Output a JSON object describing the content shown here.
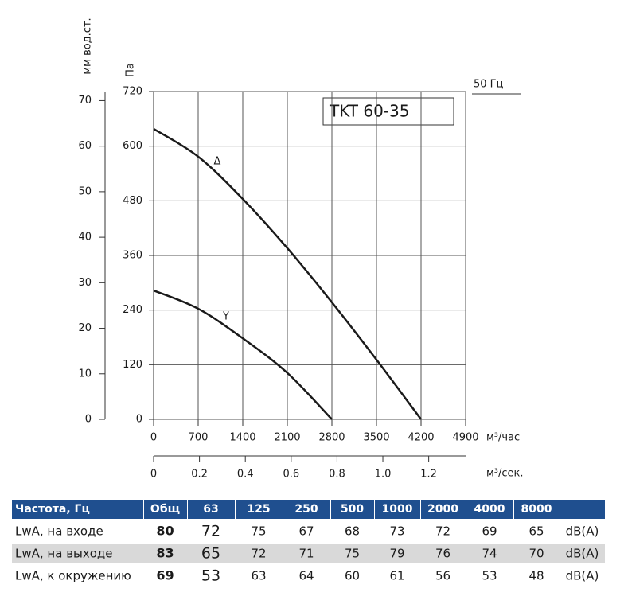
{
  "chart_data": {
    "type": "line",
    "title": "TKT 60-35",
    "annotation": "50 Гц",
    "xlabel": "м³/час",
    "x2label": "м³/сек.",
    "ylabel": "Па",
    "y2label": "мм вод.ст.",
    "x": [
      0,
      700,
      1400,
      2100,
      2800,
      3500,
      4200
    ],
    "series": [
      {
        "name": "Δ",
        "color": "#1a1a1a",
        "values": [
          638,
          577,
          484,
          376,
          257,
          131,
          0
        ]
      },
      {
        "name": "Y",
        "color": "#1a1a1a",
        "values": [
          283,
          243,
          178,
          102,
          0,
          null,
          null
        ]
      }
    ],
    "xlim": [
      0,
      4900
    ],
    "xticks": [
      0,
      700,
      1400,
      2100,
      2800,
      3500,
      4200,
      4900
    ],
    "x2lim": [
      0,
      1.361
    ],
    "x2ticks": [
      0,
      0.2,
      0.4,
      0.6,
      0.8,
      {
        "value": 1.0,
        "label": "1.0"
      },
      1.2
    ],
    "ylim": [
      0,
      720
    ],
    "yticks": [
      0,
      120,
      240,
      360,
      480,
      600,
      720
    ],
    "y2lim": [
      0,
      72
    ],
    "y2ticks": [
      0,
      10,
      20,
      30,
      40,
      50,
      60,
      70
    ],
    "grid": true
  },
  "table": {
    "header": [
      "Частота, Гц",
      "Общ",
      "63",
      "125",
      "250",
      "500",
      "1000",
      "2000",
      "4000",
      "8000"
    ],
    "rows": [
      [
        "LwA, на входе",
        80,
        72,
        75,
        67,
        68,
        73,
        72,
        69,
        65,
        "dB(A)"
      ],
      [
        "LwA, на выходе",
        83,
        65,
        72,
        71,
        75,
        79,
        76,
        74,
        70,
        "dB(A)"
      ],
      [
        "LwA, к окружению",
        69,
        53,
        63,
        64,
        60,
        61,
        56,
        53,
        48,
        "dB(A)"
      ]
    ]
  }
}
